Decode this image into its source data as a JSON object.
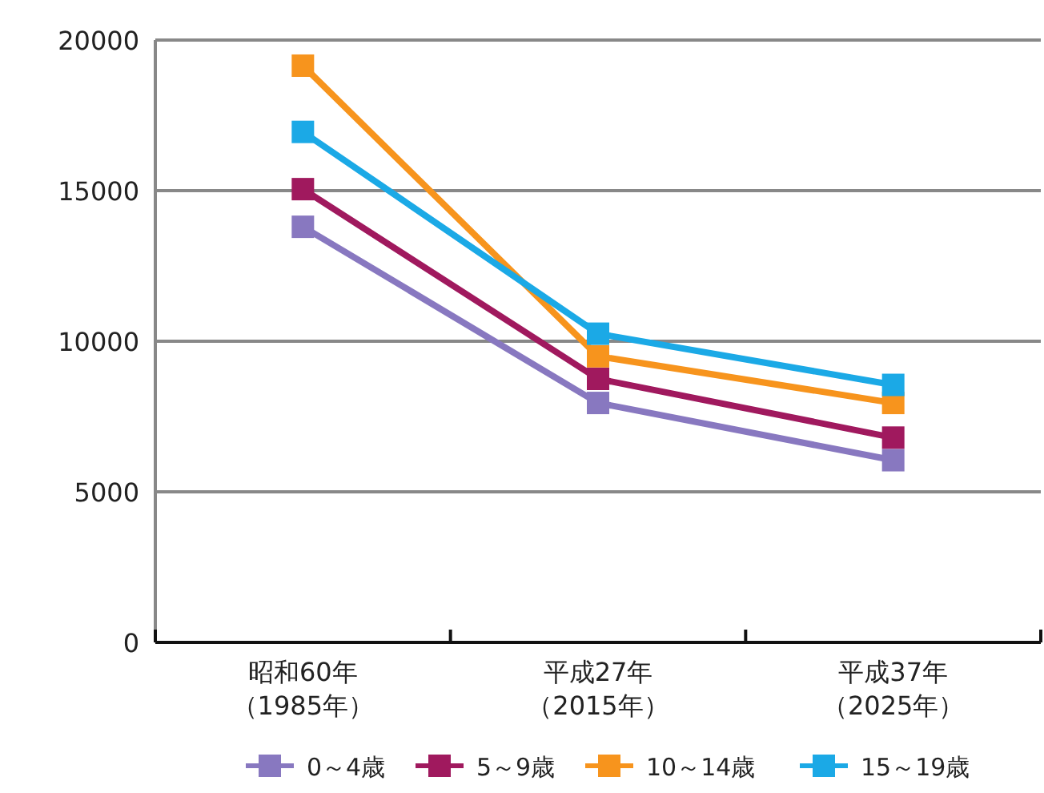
{
  "chart_data": {
    "type": "line",
    "categories": [
      "昭和60年（1985年）",
      "平成27年（2015年）",
      "平成37年（2025年）"
    ],
    "series": [
      {
        "name": "0～4歳",
        "color": "#8878c0",
        "values": [
          13800,
          7950,
          6050
        ]
      },
      {
        "name": "5～9歳",
        "color": "#a0195e",
        "values": [
          15050,
          8750,
          6800
        ]
      },
      {
        "name": "10～14歳",
        "color": "#f7941d",
        "values": [
          19150,
          9500,
          7950
        ]
      },
      {
        "name": "15～19歳",
        "color": "#1ba9e6",
        "values": [
          16950,
          10250,
          8550
        ]
      }
    ],
    "ylim": [
      0,
      20000
    ],
    "yticks": [
      0,
      5000,
      10000,
      15000,
      20000
    ],
    "grid": "y",
    "legend": "bottom",
    "marker": "square",
    "line_style": "solid"
  }
}
